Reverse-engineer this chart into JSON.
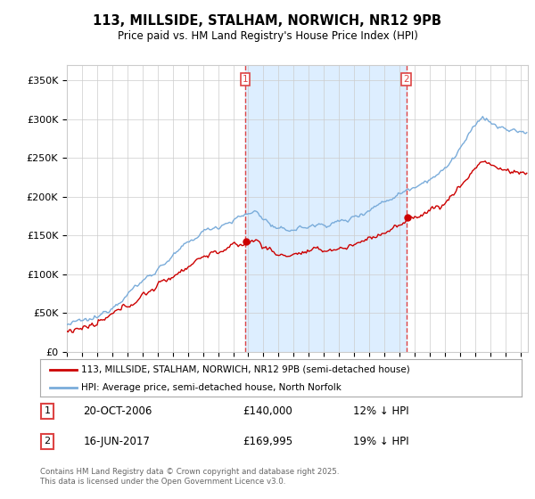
{
  "title": "113, MILLSIDE, STALHAM, NORWICH, NR12 9PB",
  "subtitle": "Price paid vs. HM Land Registry's House Price Index (HPI)",
  "legend_line1": "113, MILLSIDE, STALHAM, NORWICH, NR12 9PB (semi-detached house)",
  "legend_line2": "HPI: Average price, semi-detached house, North Norfolk",
  "annotation1_label": "1",
  "annotation1_date": "20-OCT-2006",
  "annotation1_price": "£140,000",
  "annotation1_pct": "12% ↓ HPI",
  "annotation1_year": 2006.8,
  "annotation1_value": 140000,
  "annotation2_label": "2",
  "annotation2_date": "16-JUN-2017",
  "annotation2_price": "£169,995",
  "annotation2_pct": "19% ↓ HPI",
  "annotation2_year": 2017.46,
  "annotation2_value": 169995,
  "price_color": "#cc0000",
  "hpi_color": "#7aacda",
  "shade_color": "#ddeeff",
  "vline_color": "#dd4444",
  "background_color": "#ffffff",
  "grid_color": "#cccccc",
  "ylim": [
    0,
    370000
  ],
  "xlim_start": 1995.0,
  "xlim_end": 2025.5,
  "footer": "Contains HM Land Registry data © Crown copyright and database right 2025.\nThis data is licensed under the Open Government Licence v3.0.",
  "yticks": [
    0,
    50000,
    100000,
    150000,
    200000,
    250000,
    300000,
    350000
  ],
  "ytick_labels": [
    "£0",
    "£50K",
    "£100K",
    "£150K",
    "£200K",
    "£250K",
    "£300K",
    "£350K"
  ]
}
